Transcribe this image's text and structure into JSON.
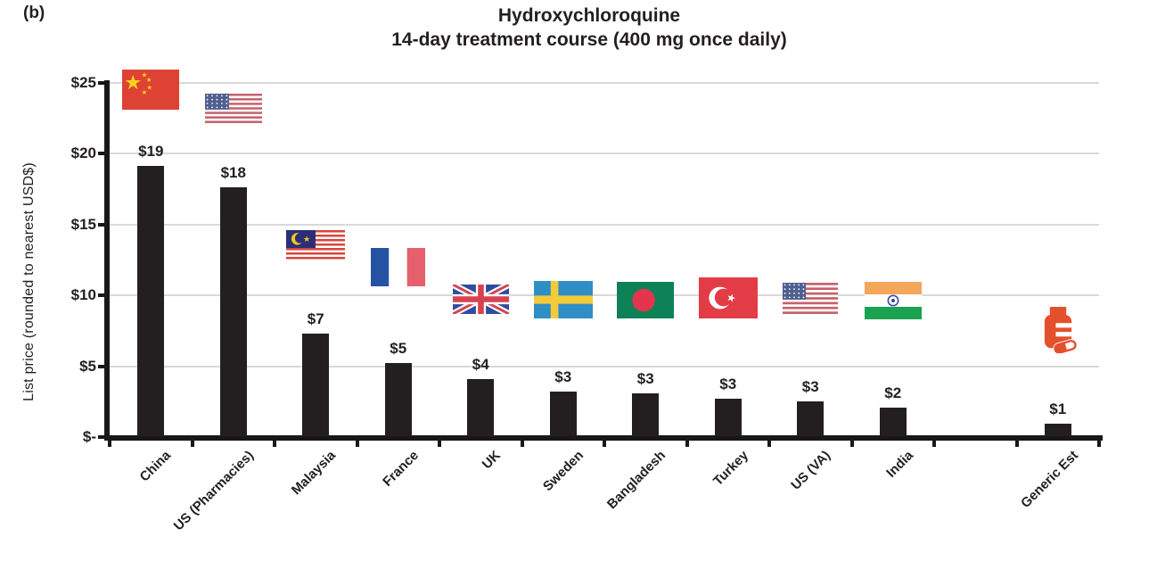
{
  "panel_label": "(b)",
  "title": "Hydroxychloroquine",
  "subtitle": "14-day treatment course (400 mg once daily)",
  "y_axis": {
    "label": "List price (rounded to nearest USD$)",
    "ticks": [
      {
        "label": "$25",
        "usd": 25
      },
      {
        "label": "$20",
        "usd": 20
      },
      {
        "label": "$15",
        "usd": 15
      },
      {
        "label": "$10",
        "usd": 10
      },
      {
        "label": "$5",
        "usd": 5
      },
      {
        "label": "$-",
        "usd": 0
      }
    ]
  },
  "colors": {
    "bar": "#231f20",
    "axis": "#1a1718",
    "gridline": "#d9d9d9",
    "text": "#231f20",
    "pill_bottle": "#e4502e",
    "flags": {
      "china_red": "#de4234",
      "china_star": "#f7d01e",
      "us_red": "#c4636c",
      "us_blue": "#4f5f90",
      "malaysia_red": "#d8453a",
      "malaysia_blue": "#2b2f77",
      "malaysia_yellow": "#f5c61e",
      "france_blue": "#2552a3",
      "france_red": "#e5606c",
      "uk_blue": "#2f4c9e",
      "uk_red": "#d8414f",
      "sweden_blue": "#2f8fc5",
      "sweden_yellow": "#f4ca3a",
      "bangladesh_green": "#0f8157",
      "bangladesh_red": "#e4344e",
      "turkey_red": "#e23c47",
      "india_saffron": "#f4a659",
      "india_green": "#1aa251",
      "india_chakra": "#3b4a9f"
    }
  },
  "chart_data": {
    "type": "bar",
    "title": "Hydroxychloroquine",
    "subtitle": "14-day treatment course (400 mg once daily)",
    "xlabel": "",
    "ylabel": "List price (rounded to nearest USD$)",
    "ylim": [
      0,
      25
    ],
    "y_tick_step": 5,
    "grid": "horizontal",
    "legend": "none",
    "bar_color": "#231f20",
    "categories": [
      "China",
      "US (Pharmacies)",
      "Malaysia",
      "France",
      "UK",
      "Sweden",
      "Bangladesh",
      "Turkey",
      "US (VA)",
      "India",
      "Generic Est"
    ],
    "values": [
      19,
      18,
      7,
      5,
      4,
      3,
      3,
      3,
      3,
      2,
      1
    ],
    "value_labels": [
      "$19",
      "$18",
      "$7",
      "$5",
      "$4",
      "$3",
      "$3",
      "$3",
      "$3",
      "$2",
      "$1"
    ],
    "bar_heights_usd": [
      19.1,
      17.6,
      7.3,
      5.2,
      4.1,
      3.2,
      3.1,
      2.7,
      2.5,
      2.1,
      0.95
    ],
    "icons": [
      "china-flag",
      "us-flag",
      "malaysia-flag",
      "france-flag",
      "uk-flag",
      "sweden-flag",
      "bangladesh-flag",
      "turkey-flag",
      "us-flag",
      "india-flag",
      "pill-bottle"
    ]
  }
}
